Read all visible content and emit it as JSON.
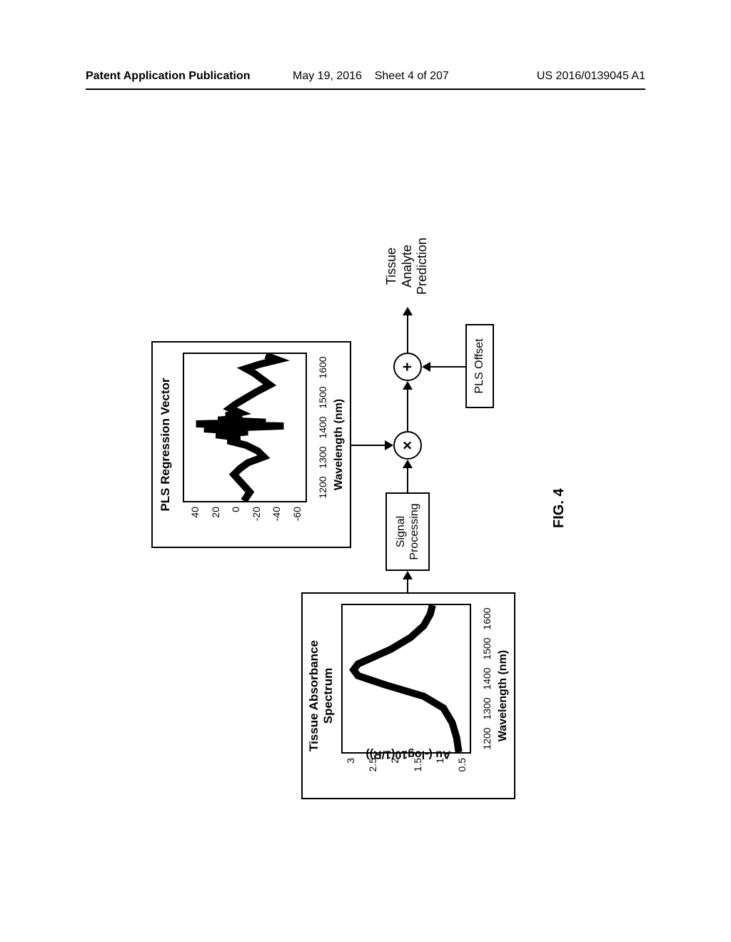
{
  "header": {
    "left": "Patent Application Publication",
    "mid_date": "May 19, 2016",
    "mid_sheet": "Sheet 4 of 207",
    "right": "US 2016/0139045 A1"
  },
  "figure_label": "FIG. 4",
  "panels": {
    "absorbance": {
      "type": "line",
      "title_line1": "Tissue Absorbance",
      "title_line2": "Spectrum",
      "xlabel": "Wavelength (nm)",
      "ylabel": "Au (-log10(1/R))",
      "xticks": [
        "1200",
        "1300",
        "1400",
        "1500",
        "1600"
      ],
      "yticks": [
        "0.5",
        "1",
        "1.5",
        "2",
        "2.5",
        "3"
      ],
      "ylim": [
        0.3,
        3.2
      ],
      "xlim": [
        1150,
        1650
      ],
      "line_color": "#000000",
      "line_width": 2,
      "x": [
        1150,
        1200,
        1250,
        1300,
        1340,
        1380,
        1410,
        1430,
        1450,
        1470,
        1500,
        1540,
        1580,
        1620,
        1650
      ],
      "y": [
        0.55,
        0.6,
        0.7,
        0.9,
        1.35,
        2.25,
        2.85,
        2.95,
        2.85,
        2.55,
        2.1,
        1.65,
        1.35,
        1.2,
        1.15
      ]
    },
    "regression": {
      "type": "line",
      "title": "PLS Regression Vector",
      "xlabel": "Wavelength (nm)",
      "xticks": [
        "1200",
        "1300",
        "1400",
        "1500",
        "1600"
      ],
      "yticks": [
        "-60",
        "-40",
        "-20",
        "0",
        "20",
        "40"
      ],
      "ylim": [
        -70,
        52
      ],
      "xlim": [
        1150,
        1650
      ],
      "line_color": "#000000",
      "line_width": 2,
      "x": [
        1150,
        1180,
        1210,
        1240,
        1260,
        1280,
        1300,
        1320,
        1340,
        1355,
        1365,
        1375,
        1385,
        1395,
        1405,
        1412,
        1418,
        1425,
        1432,
        1440,
        1450,
        1465,
        1480,
        1500,
        1520,
        1545,
        1565,
        1585,
        1600,
        1615,
        1630,
        1645
      ],
      "y": [
        -8,
        -14,
        -6,
        2,
        -4,
        -12,
        -28,
        -22,
        -10,
        8,
        -4,
        20,
        -12,
        32,
        -48,
        40,
        -30,
        18,
        -6,
        10,
        -4,
        6,
        0,
        -10,
        -20,
        -34,
        -26,
        -18,
        -10,
        -24,
        -42,
        -30
      ]
    }
  },
  "flow": {
    "signal_processing": "Signal\nProcessing",
    "multiply": "×",
    "add": "+",
    "pls_offset": "PLS Offset",
    "output_line1": "Tissue",
    "output_line2": "Analyte",
    "output_line3": "Prediction"
  },
  "colors": {
    "stroke": "#000000",
    "bg": "#ffffff"
  }
}
